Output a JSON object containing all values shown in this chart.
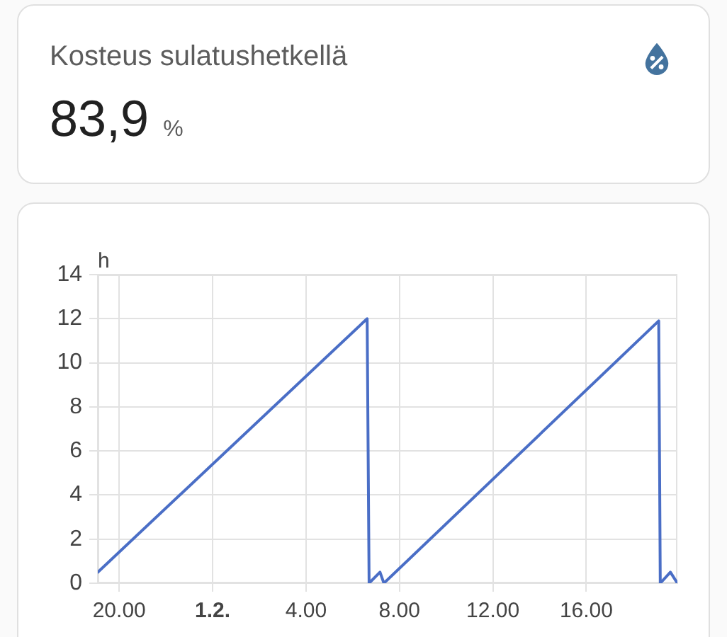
{
  "chart_data": [
    {
      "type": "other",
      "title": "Kosteus sulatushetkellä",
      "annotations": [
        "83,9",
        "%"
      ]
    },
    {
      "type": "line",
      "ylabel": "h",
      "x": [
        "--01-31T19:05",
        "--02-01T06:37",
        "--02-01T06:42",
        "--02-01T07:10",
        "--02-01T07:20",
        "--02-01T19:06",
        "--02-01T19:10",
        "--02-01T19:36",
        "--02-01T19:54"
      ],
      "series": [
        {
          "color": "#4a6ec6",
          "values": [
            0.5,
            12,
            0,
            0.5,
            0,
            11.9,
            0,
            0.5,
            0
          ]
        }
      ],
      "xlim": [
        "--01-31T19:05",
        "--02-01T19:54"
      ],
      "xticks": [
        {
          "value": "--01-31T20:00",
          "label": "20.00"
        },
        {
          "value": "--02-01T00:00",
          "label": "1.2."
        },
        {
          "value": "--02-01T04:00",
          "label": "4.00"
        },
        {
          "value": "--02-01T08:00",
          "label": "8.00"
        },
        {
          "value": "--02-01T12:00",
          "label": "12.00"
        },
        {
          "value": "--02-01T16:00",
          "label": "16.00"
        }
      ],
      "ylim": [
        0,
        14
      ],
      "yticks": [
        0,
        2,
        4,
        6,
        8,
        10,
        12,
        14
      ],
      "grid": true,
      "marker": "none"
    }
  ]
}
